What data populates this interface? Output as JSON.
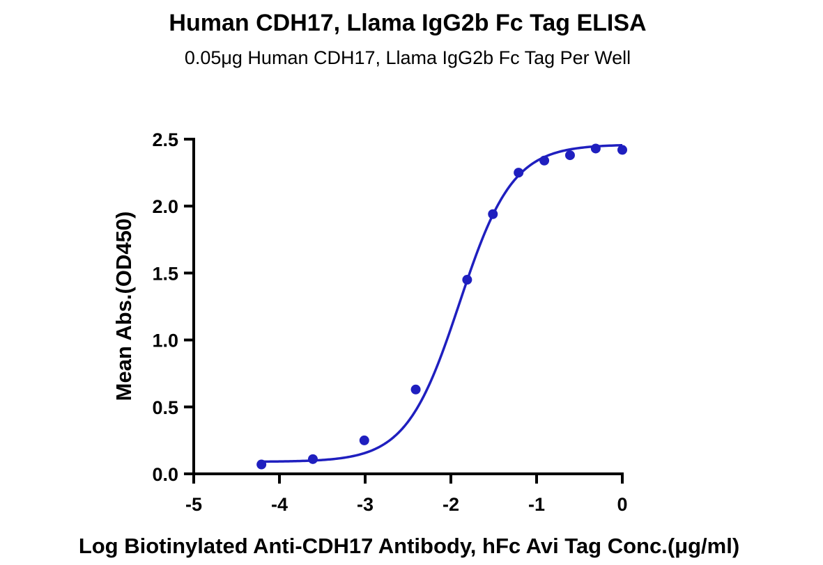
{
  "chart_data": {
    "type": "scatter",
    "title": "Human CDH17, Llama IgG2b Fc Tag ELISA",
    "subtitle": "0.05μg Human CDH17, Llama IgG2b Fc Tag Per Well",
    "xlabel": "Log Biotinylated Anti-CDH17 Antibody, hFc Avi Tag Conc.(μg/ml)",
    "ylabel": "Mean Abs.(OD450)",
    "xlim": [
      -5,
      0
    ],
    "ylim": [
      0,
      2.5
    ],
    "xticks": [
      -5,
      -4,
      -3,
      -2,
      -1,
      0
    ],
    "xtick_labels": [
      "-5",
      "-4",
      "-3",
      "-2",
      "-1",
      "0"
    ],
    "yticks": [
      0.0,
      0.5,
      1.0,
      1.5,
      2.0,
      2.5
    ],
    "ytick_labels": [
      "0.0",
      "0.5",
      "1.0",
      "1.5",
      "2.0",
      "2.5"
    ],
    "grid": false,
    "series": [
      {
        "color": "#1f1fbf",
        "x": [
          -4.21,
          -3.61,
          -3.01,
          -2.41,
          -1.81,
          -1.51,
          -1.21,
          -0.91,
          -0.61,
          -0.31,
          0.0
        ],
        "y": [
          0.07,
          0.11,
          0.25,
          0.63,
          1.45,
          1.94,
          2.25,
          2.34,
          2.38,
          2.43,
          2.42
        ],
        "fit": {
          "model": "4PL",
          "bottom": 0.09,
          "top": 2.46,
          "logEC50": -1.9,
          "hill": 1.4,
          "x_range": [
            -4.21,
            0.0
          ]
        }
      }
    ]
  }
}
